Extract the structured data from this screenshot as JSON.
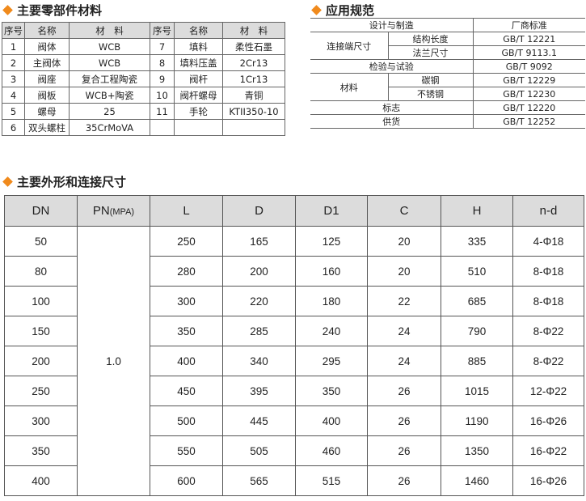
{
  "sections": {
    "parts_title": "主要零部件材料",
    "specs_title": "应用规范",
    "dims_title": "主要外形和连接尺寸"
  },
  "colors": {
    "accent": "#f08a1c",
    "header_bg": "#dcdcdc"
  },
  "parts": {
    "headers": [
      "序号",
      "名称",
      "材　料",
      "序号",
      "名称",
      "材　料"
    ],
    "rows": [
      [
        "1",
        "阀体",
        "WCB",
        "7",
        "填料",
        "柔性石墨"
      ],
      [
        "2",
        "主阀体",
        "WCB",
        "8",
        "填料压盖",
        "2Cr13"
      ],
      [
        "3",
        "阀座",
        "复合工程陶瓷",
        "9",
        "阀杆",
        "1Cr13"
      ],
      [
        "4",
        "阀板",
        "WCB+陶瓷",
        "10",
        "阀杆螺母",
        "青铜"
      ],
      [
        "5",
        "螺母",
        "25",
        "11",
        "手轮",
        "KTII350-10"
      ],
      [
        "6",
        "双头螺柱",
        "35CrMoVA",
        "",
        "",
        ""
      ]
    ]
  },
  "specs": {
    "header_left": "设计与制造",
    "header_right": "厂商标准",
    "connection": "连接端尺寸",
    "structure_length": "结构长度",
    "structure_length_std": "GB/T 12221",
    "flange": "法兰尺寸",
    "flange_std": "GB/T 9113.1",
    "inspection": "检验与试验",
    "inspection_std": "GB/T 9092",
    "material": "材料",
    "carbon": "碳钢",
    "carbon_std": "GB/T 12229",
    "stainless": "不锈钢",
    "stainless_std": "GB/T 12230",
    "marking": "标志",
    "marking_std": "GB/T 12220",
    "supply": "供货",
    "supply_std": "GB/T 12252"
  },
  "dims": {
    "headers": [
      "DN",
      "PN",
      "(MPA)",
      "L",
      "D",
      "D1",
      "C",
      "H",
      "n-d"
    ],
    "pn": "1.0",
    "rows": [
      [
        "50",
        "250",
        "165",
        "125",
        "20",
        "335",
        "4-Φ18"
      ],
      [
        "80",
        "280",
        "200",
        "160",
        "20",
        "510",
        "8-Φ18"
      ],
      [
        "100",
        "300",
        "220",
        "180",
        "22",
        "685",
        "8-Φ18"
      ],
      [
        "150",
        "350",
        "285",
        "240",
        "24",
        "790",
        "8-Φ22"
      ],
      [
        "200",
        "400",
        "340",
        "295",
        "24",
        "885",
        "8-Φ22"
      ],
      [
        "250",
        "450",
        "395",
        "350",
        "26",
        "1015",
        "12-Φ22"
      ],
      [
        "300",
        "500",
        "445",
        "400",
        "26",
        "1190",
        "16-Φ26"
      ],
      [
        "350",
        "550",
        "505",
        "460",
        "26",
        "1350",
        "16-Φ22"
      ],
      [
        "400",
        "600",
        "565",
        "515",
        "26",
        "1460",
        "16-Φ26"
      ]
    ]
  }
}
